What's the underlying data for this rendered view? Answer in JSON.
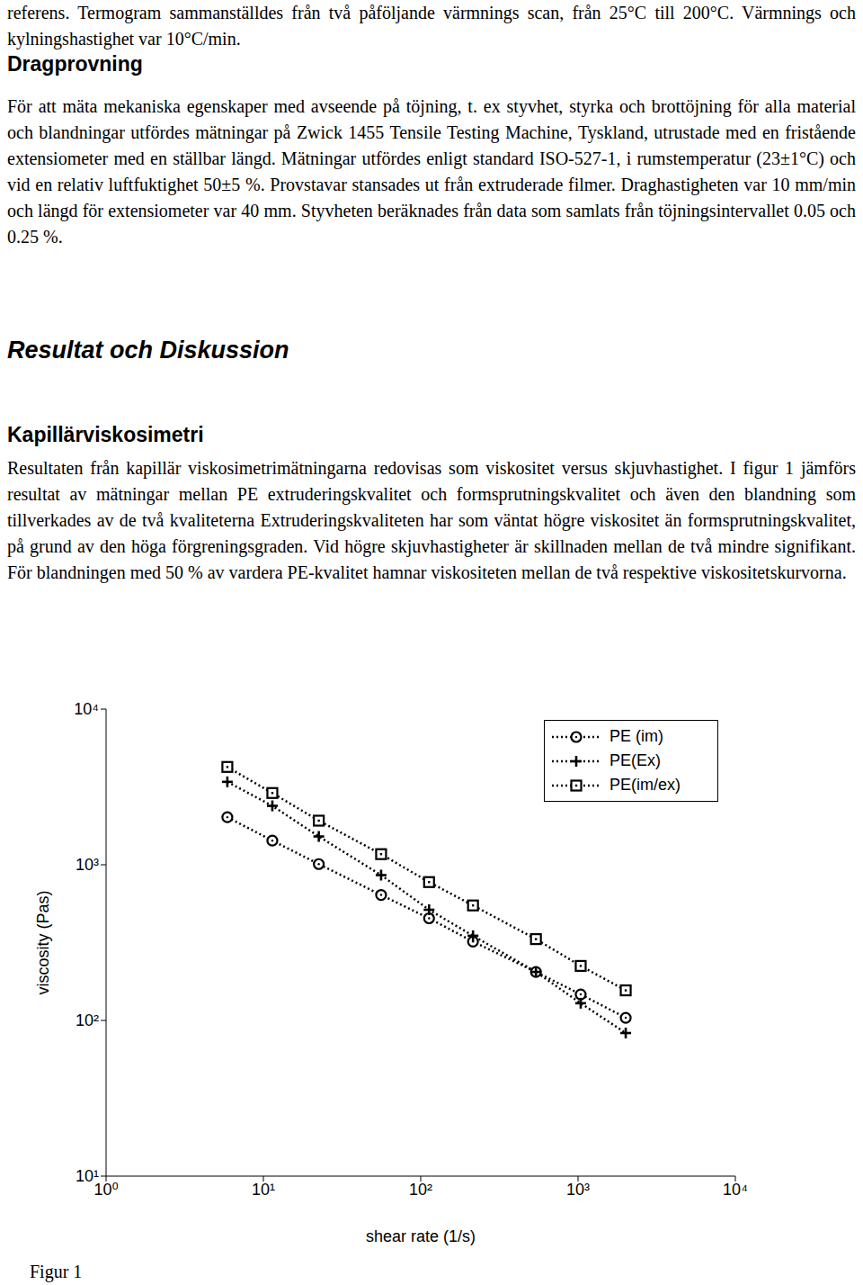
{
  "document": {
    "intro": "referens. Termogram sammanställdes från två påföljande värmnings scan, från 25°C till 200°C. Värmnings och kylningshastighet var 10°C/min.",
    "heading1": "Dragprovning",
    "para1": "För att mäta mekaniska egenskaper med avseende på töjning, t. ex styvhet, styrka och brottöjning för alla material och blandningar utfördes mätningar på Zwick 1455 Tensile Testing Machine, Tyskland, utrustade med en fristående extensiometer med en ställbar längd. Mätningar utfördes enligt standard ISO-527-1, i rumstemperatur (23±1°C) och vid en relativ luftfuktighet 50±5 %. Provstavar stansades ut från extruderade filmer. Draghastigheten var 10 mm/min och längd för extensiometer var 40 mm. Styvheten beräknades från data som samlats från töjningsintervallet 0.05 och 0.25 %.",
    "heading2": "Resultat och Diskussion",
    "subheading": "Kapillärviskosimetri",
    "para2": "Resultaten från kapillär viskosimetrimätningarna redovisas som viskositet versus skjuvhastighet. I figur 1 jämförs resultat av mätningar mellan PE extruderingskvalitet och formsprutningskvalitet och även den blandning som tillverkades av de två kvaliteterna Extruderingskvaliteten har som väntat högre viskositet än formsprutningskvalitet, på grund av den höga förgreningsgraden. Vid högre skjuvhastigheter är skillnaden mellan de två mindre signifikant. För blandningen med 50 % av vardera PE-kvalitet hamnar viskositeten mellan de två respektive viskositetskurvorna.",
    "caption": "Figur 1"
  },
  "chart_data": {
    "type": "line",
    "xlabel": "shear rate (1/s)",
    "ylabel": "viscosity (Pas)",
    "log": true,
    "grid": false,
    "legend": "upper right",
    "x": [
      5.9,
      11.4,
      22.5,
      56,
      113,
      215,
      540,
      1040,
      2010
    ],
    "series": [
      {
        "name": "PE (im)",
        "color": "#000000",
        "marker": "circle",
        "line_style": "dotted",
        "values": [
          2020,
          1430,
          1010,
          640,
          453,
          321,
          205,
          147,
          104
        ]
      },
      {
        "name": "PE(Ex)",
        "color": "#000000",
        "marker": "plus",
        "line_style": "dotted",
        "values": [
          3410,
          2390,
          1520,
          858,
          514,
          350,
          205,
          129,
          83
        ]
      },
      {
        "name": "PE(im/ex)",
        "color": "#000000",
        "marker": "square",
        "line_style": "dotted",
        "values": [
          4250,
          2890,
          1920,
          1170,
          774,
          548,
          333,
          224,
          156
        ]
      }
    ],
    "xlim": [
      1,
      10000
    ],
    "xticks": [
      {
        "value": 1,
        "label": "10⁰"
      },
      {
        "value": 10,
        "label": "10¹"
      },
      {
        "value": 100,
        "label": "10²"
      },
      {
        "value": 1000,
        "label": "10³"
      },
      {
        "value": 10000,
        "label": "10⁴"
      }
    ],
    "ylim": [
      10,
      10000
    ],
    "yticks": [
      {
        "value": 10,
        "label": "10¹"
      },
      {
        "value": 100,
        "label": "10²"
      },
      {
        "value": 1000,
        "label": "10³"
      },
      {
        "value": 10000,
        "label": "10⁴"
      }
    ]
  }
}
